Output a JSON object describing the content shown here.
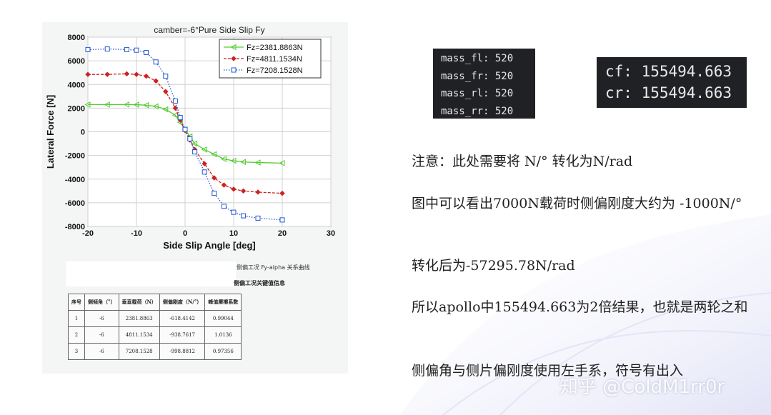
{
  "left_photo": {
    "chart_data": {
      "type": "line",
      "title": "camber=-6°Pure Side Slip Fy",
      "xlabel": "Side Slip Angle [deg]",
      "ylabel": "Lateral Force [N]",
      "xlim": [
        -20,
        30
      ],
      "ylim": [
        -8000,
        8000
      ],
      "xticks": [
        "-20",
        "-10",
        "0",
        "10",
        "20",
        "30"
      ],
      "yticks": [
        "8000",
        "6000",
        "4000",
        "2000",
        "0",
        "-2000",
        "-4000",
        "-6000",
        "-8000"
      ],
      "grid": true,
      "legend_position": "top-right",
      "series": [
        {
          "name": "Fz=2381.8863N",
          "color": "#55cc33",
          "marker": "triangle",
          "x": [
            -20,
            -16,
            -12,
            -10,
            -8,
            -6,
            -4,
            -2,
            -1,
            0,
            1,
            2,
            4,
            6,
            8,
            10,
            12,
            15,
            20
          ],
          "y": [
            2300,
            2300,
            2300,
            2290,
            2250,
            2150,
            1900,
            1400,
            800,
            200,
            -400,
            -1000,
            -1500,
            -1900,
            -2300,
            -2450,
            -2550,
            -2600,
            -2650
          ]
        },
        {
          "name": "Fz=4811.1534N",
          "color": "#cc2222",
          "marker": "diamond",
          "x": [
            -20,
            -16,
            -12,
            -10,
            -8,
            -6,
            -4,
            -2,
            -1,
            0,
            1,
            2,
            4,
            6,
            8,
            10,
            12,
            15,
            20
          ],
          "y": [
            4850,
            4850,
            4900,
            4850,
            4700,
            4300,
            3400,
            2000,
            1000,
            100,
            -700,
            -1500,
            -2700,
            -3900,
            -4500,
            -4850,
            -5000,
            -5100,
            -5200
          ]
        },
        {
          "name": "Fz=7208.1528N",
          "color": "#2255cc",
          "marker": "square",
          "x": [
            -20,
            -16,
            -12,
            -10,
            -8,
            -6,
            -4,
            -2,
            -1,
            0,
            1,
            2,
            4,
            6,
            8,
            10,
            12,
            15,
            20
          ],
          "y": [
            6950,
            7000,
            6950,
            6900,
            6700,
            5900,
            4700,
            2600,
            1200,
            200,
            -600,
            -1700,
            -3400,
            -5200,
            -6300,
            -6800,
            -7100,
            -7300,
            -7450
          ]
        }
      ]
    },
    "caption_curve": "侧偏工况 Fy-alpha 关系曲线",
    "caption_table": "侧偏工况关键值信息",
    "table": {
      "headers": [
        "序号",
        "侧倾角（°）",
        "垂直载荷（N）",
        "侧偏刚度（N/°）",
        "峰值摩擦系数"
      ],
      "rows": [
        [
          "1",
          "-6",
          "2381.8863",
          "-618.4142",
          "0.99044"
        ],
        [
          "2",
          "-6",
          "4811.1534",
          "-938.7617",
          "1.0136"
        ],
        [
          "3",
          "-6",
          "7208.1528",
          "-998.8812",
          "0.97356"
        ]
      ]
    }
  },
  "code_mass": [
    "mass_fl: 520",
    "mass_fr: 520",
    "mass_rl: 520",
    "mass_rr: 520"
  ],
  "code_stiffness": [
    "cf: 155494.663",
    "cr: 155494.663"
  ],
  "notes": {
    "n1": "注意：此处需要将 N/° 转化为N/rad",
    "n2": "图中可以看出7000N载荷时侧偏刚度大约为 -1000N/°",
    "n3": "转化后为-57295.78N/rad",
    "n4": "所以apollo中155494.663为2倍结果，也就是两轮之和",
    "n5": "侧偏角与侧片偏刚度使用左手系，符号有出入"
  },
  "watermark": "知乎 @ColdM1rr0r",
  "colors": {
    "terminal_bg": "#202124",
    "series_green": "#55cc33",
    "series_red": "#cc2222",
    "series_blue": "#2255cc"
  }
}
